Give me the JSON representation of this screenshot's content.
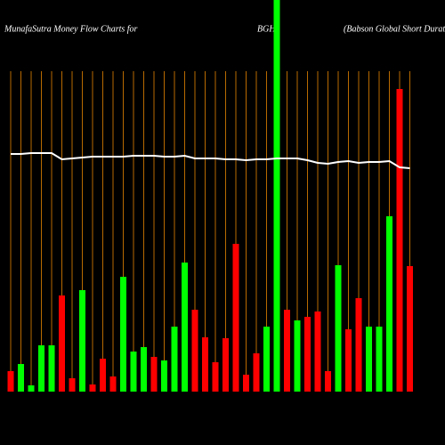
{
  "chart_data": {
    "type": "bar",
    "title": "MunafaSutra  Money Flow  Charts for",
    "symbol": "BGH",
    "subtitle": "(Babson  Global Short Duration",
    "categories": [
      null,
      null,
      null,
      null,
      null,
      null,
      null,
      null,
      null,
      null,
      null,
      null,
      null,
      null,
      null,
      null,
      null,
      null,
      null,
      null,
      null,
      null,
      null,
      null,
      null,
      null,
      null,
      null,
      null,
      null,
      null,
      null,
      null,
      null,
      null,
      null,
      null,
      null,
      null,
      null
    ],
    "values": [
      23,
      31,
      7,
      52,
      52,
      108,
      15,
      114,
      8,
      37,
      17,
      129,
      45,
      50,
      39,
      35,
      73,
      145,
      92,
      61,
      33,
      60,
      166,
      19,
      43,
      73,
      460,
      92,
      80,
      84,
      90,
      23,
      142,
      70,
      105,
      73,
      73,
      197,
      340,
      141
    ],
    "colors": [
      "#ff0000",
      "#00ff00",
      "#00ff00",
      "#00ff00",
      "#00ff00",
      "#ff0000",
      "#ff0000",
      "#00ff00",
      "#ff0000",
      "#ff0000",
      "#ff0000",
      "#00ff00",
      "#00ff00",
      "#00ff00",
      "#ff0000",
      "#00ff00",
      "#00ff00",
      "#00ff00",
      "#ff0000",
      "#ff0000",
      "#ff0000",
      "#ff0000",
      "#ff0000",
      "#ff0000",
      "#ff0000",
      "#00ff00",
      "#00ff00",
      "#ff0000",
      "#00ff00",
      "#ff0000",
      "#ff0000",
      "#ff0000",
      "#00ff00",
      "#ff0000",
      "#ff0000",
      "#00ff00",
      "#00ff00",
      "#00ff00",
      "#ff0000",
      "#ff0000"
    ],
    "line": {
      "color": "#ffffff",
      "values": [
        267,
        267,
        268,
        268,
        268,
        261,
        262,
        263,
        264,
        264,
        264,
        264,
        265,
        265,
        265,
        264,
        264,
        265,
        262,
        262,
        262,
        261,
        261,
        260,
        261,
        261,
        262,
        262,
        262,
        260,
        257,
        256,
        258,
        259,
        257,
        258,
        258,
        259,
        252,
        251
      ]
    },
    "ylim": [
      0,
      440
    ],
    "grid_color": "#b86a00"
  }
}
